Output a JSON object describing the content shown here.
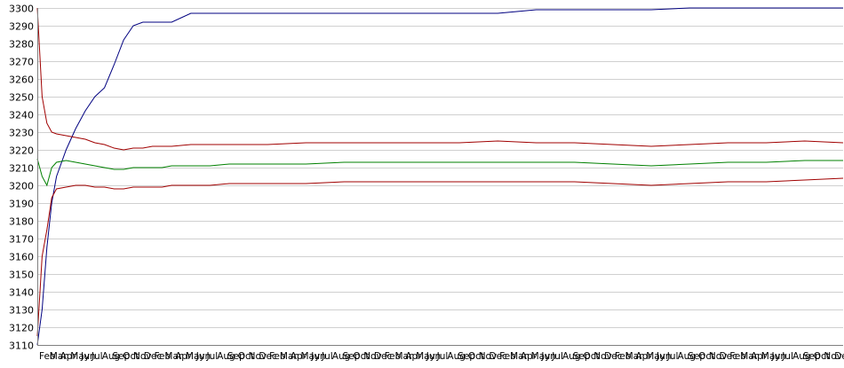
{
  "chart_data": {
    "type": "line",
    "title": "",
    "xlabel": "",
    "ylabel": "",
    "ylim": [
      3110,
      3300
    ],
    "y_ticks": [
      3110,
      3120,
      3130,
      3140,
      3150,
      3160,
      3170,
      3180,
      3190,
      3200,
      3210,
      3220,
      3230,
      3240,
      3250,
      3260,
      3270,
      3280,
      3290,
      3300
    ],
    "grid": true,
    "legend": "none",
    "x_tick_labels": [
      "Feb",
      "Mar",
      "Apr",
      "May",
      "Jun",
      "Jul",
      "Aug",
      "Sep",
      "Oct",
      "Nov",
      "Dec",
      "Feb",
      "Mar",
      "Apr",
      "May",
      "Jun",
      "Jul",
      "Aug",
      "Sep",
      "Oct",
      "Nov",
      "Dec",
      "Feb",
      "Mar",
      "Apr",
      "May",
      "Jun",
      "Jul",
      "Aug",
      "Sep",
      "Oct",
      "Nov",
      "Dec",
      "Feb",
      "Mar",
      "Apr",
      "May",
      "Jun",
      "Jul",
      "Aug",
      "Sep",
      "Oct",
      "Nov",
      "Dec",
      "Feb",
      "Mar",
      "Apr",
      "May",
      "Jun",
      "Jul",
      "Aug",
      "Sep",
      "Oct",
      "Nov",
      "Dec",
      "Feb",
      "Mar",
      "Apr",
      "May",
      "Jun",
      "Jul",
      "Aug",
      "Sep",
      "Oct",
      "Nov",
      "Dec",
      "Feb",
      "Mar",
      "Apr",
      "May",
      "Jun",
      "Jul",
      "Aug",
      "Sep",
      "Oct",
      "Nov",
      "Dec"
    ],
    "x": [
      0,
      0.5,
      1,
      1.5,
      2,
      3,
      4,
      5,
      6,
      7,
      8,
      9,
      10,
      11,
      12,
      13,
      14,
      16,
      18,
      20,
      24,
      28,
      32,
      36,
      40,
      44,
      48,
      52,
      56,
      60,
      64,
      68,
      72,
      76,
      80,
      84
    ],
    "series": [
      {
        "color": "#000080",
        "values": [
          3110,
          3130,
          3165,
          3190,
          3205,
          3220,
          3232,
          3242,
          3250,
          3255,
          3268,
          3282,
          3290,
          3292,
          3292,
          3292,
          3292,
          3297,
          3297,
          3297,
          3297,
          3297,
          3297,
          3297,
          3297,
          3297,
          3297,
          3299,
          3299,
          3299,
          3299,
          3300,
          3300,
          3300,
          3300,
          3300
        ]
      },
      {
        "color": "#a00000",
        "values": [
          3300,
          3250,
          3235,
          3230,
          3229,
          3228,
          3227,
          3226,
          3224,
          3223,
          3221,
          3220,
          3221,
          3221,
          3222,
          3222,
          3222,
          3223,
          3223,
          3223,
          3223,
          3224,
          3224,
          3224,
          3224,
          3224,
          3225,
          3224,
          3224,
          3223,
          3222,
          3223,
          3224,
          3224,
          3225,
          3224
        ]
      },
      {
        "color": "#008000",
        "values": [
          3215,
          3205,
          3200,
          3210,
          3213,
          3214,
          3213,
          3212,
          3211,
          3210,
          3209,
          3209,
          3210,
          3210,
          3210,
          3210,
          3211,
          3211,
          3211,
          3212,
          3212,
          3212,
          3213,
          3213,
          3213,
          3213,
          3213,
          3213,
          3213,
          3212,
          3211,
          3212,
          3213,
          3213,
          3214,
          3214
        ]
      },
      {
        "color": "#a00000",
        "values": [
          3115,
          3160,
          3175,
          3193,
          3198,
          3199,
          3200,
          3200,
          3199,
          3199,
          3198,
          3198,
          3199,
          3199,
          3199,
          3199,
          3200,
          3200,
          3200,
          3201,
          3201,
          3201,
          3202,
          3202,
          3202,
          3202,
          3202,
          3202,
          3202,
          3201,
          3200,
          3201,
          3202,
          3202,
          3203,
          3204
        ]
      }
    ]
  }
}
